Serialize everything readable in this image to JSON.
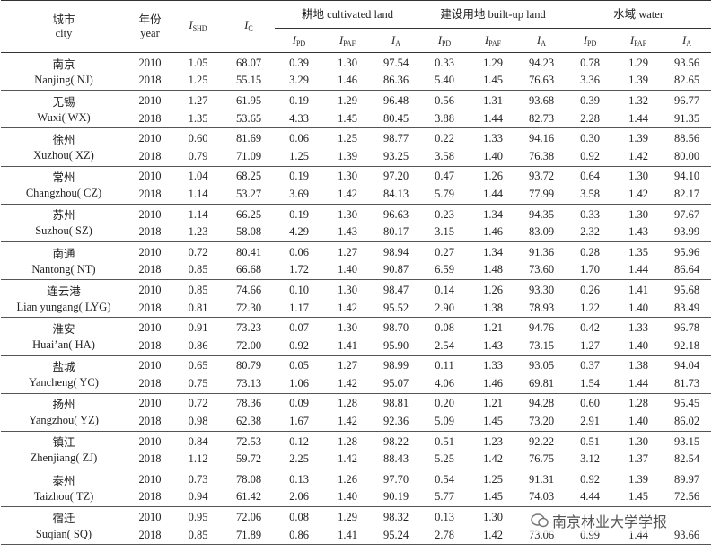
{
  "header": {
    "city": "城市",
    "city_en": "city",
    "year": "年份",
    "year_en": "year",
    "index_cols": [
      {
        "symbol": "I",
        "sub": "SHD"
      },
      {
        "symbol": "I",
        "sub": "C"
      }
    ],
    "groups": [
      {
        "title": "耕地 cultivated land",
        "cols": [
          {
            "symbol": "I",
            "sub": "PD"
          },
          {
            "symbol": "I",
            "sub": "PAF"
          },
          {
            "symbol": "I",
            "sub": "A"
          }
        ]
      },
      {
        "title": "建设用地 built-up land",
        "cols": [
          {
            "symbol": "I",
            "sub": "PD"
          },
          {
            "symbol": "I",
            "sub": "PAF"
          },
          {
            "symbol": "I",
            "sub": "A"
          }
        ]
      },
      {
        "title": "水域 water",
        "cols": [
          {
            "symbol": "I",
            "sub": "PD"
          },
          {
            "symbol": "I",
            "sub": "PAF"
          },
          {
            "symbol": "I",
            "sub": "A"
          }
        ]
      }
    ]
  },
  "rows": [
    {
      "city": "南京",
      "city_en": "Nanjing( NJ)",
      "years": [
        {
          "year": "2010",
          "values": [
            "1.05",
            "68.07",
            "0.39",
            "1.30",
            "97.54",
            "0.33",
            "1.29",
            "94.23",
            "0.78",
            "1.29",
            "93.56"
          ]
        },
        {
          "year": "2018",
          "values": [
            "1.25",
            "55.15",
            "3.29",
            "1.46",
            "86.36",
            "5.40",
            "1.45",
            "76.63",
            "3.36",
            "1.39",
            "82.65"
          ]
        }
      ]
    },
    {
      "city": "无锡",
      "city_en": "Wuxi( WX)",
      "years": [
        {
          "year": "2010",
          "values": [
            "1.27",
            "61.95",
            "0.19",
            "1.29",
            "96.48",
            "0.56",
            "1.31",
            "93.68",
            "0.39",
            "1.32",
            "96.77"
          ]
        },
        {
          "year": "2018",
          "values": [
            "1.35",
            "53.65",
            "4.33",
            "1.45",
            "80.45",
            "3.88",
            "1.44",
            "82.73",
            "2.28",
            "1.44",
            "91.35"
          ]
        }
      ]
    },
    {
      "city": "徐州",
      "city_en": "Xuzhou( XZ)",
      "years": [
        {
          "year": "2010",
          "values": [
            "0.60",
            "81.69",
            "0.06",
            "1.25",
            "98.77",
            "0.22",
            "1.33",
            "94.16",
            "0.30",
            "1.39",
            "88.56"
          ]
        },
        {
          "year": "2018",
          "values": [
            "0.79",
            "71.09",
            "1.25",
            "1.39",
            "93.25",
            "3.58",
            "1.40",
            "76.38",
            "0.92",
            "1.42",
            "80.00"
          ]
        }
      ]
    },
    {
      "city": "常州",
      "city_en": "Changzhou( CZ)",
      "years": [
        {
          "year": "2010",
          "values": [
            "1.04",
            "68.25",
            "0.19",
            "1.30",
            "97.20",
            "0.47",
            "1.26",
            "93.72",
            "0.64",
            "1.30",
            "94.10"
          ]
        },
        {
          "year": "2018",
          "values": [
            "1.14",
            "53.27",
            "3.69",
            "1.42",
            "84.13",
            "5.79",
            "1.44",
            "77.99",
            "3.58",
            "1.42",
            "82.17"
          ]
        }
      ]
    },
    {
      "city": "苏州",
      "city_en": "Suzhou( SZ)",
      "years": [
        {
          "year": "2010",
          "values": [
            "1.14",
            "66.25",
            "0.19",
            "1.30",
            "96.63",
            "0.23",
            "1.34",
            "94.35",
            "0.33",
            "1.30",
            "97.67"
          ]
        },
        {
          "year": "2018",
          "values": [
            "1.23",
            "58.08",
            "4.29",
            "1.43",
            "80.17",
            "3.15",
            "1.46",
            "83.09",
            "2.32",
            "1.43",
            "93.99"
          ]
        }
      ]
    },
    {
      "city": "南通",
      "city_en": "Nantong( NT)",
      "years": [
        {
          "year": "2010",
          "values": [
            "0.72",
            "80.41",
            "0.06",
            "1.27",
            "98.94",
            "0.27",
            "1.34",
            "91.36",
            "0.28",
            "1.35",
            "95.96"
          ]
        },
        {
          "year": "2018",
          "values": [
            "0.85",
            "66.68",
            "1.72",
            "1.40",
            "90.87",
            "6.59",
            "1.48",
            "73.60",
            "1.70",
            "1.44",
            "86.64"
          ]
        }
      ]
    },
    {
      "city": "连云港",
      "city_en": "Lian yungang( LYG)",
      "years": [
        {
          "year": "2010",
          "values": [
            "0.85",
            "74.66",
            "0.10",
            "1.30",
            "98.47",
            "0.14",
            "1.26",
            "93.30",
            "0.26",
            "1.41",
            "95.68"
          ]
        },
        {
          "year": "2018",
          "values": [
            "0.81",
            "72.30",
            "1.17",
            "1.42",
            "95.52",
            "2.90",
            "1.38",
            "78.93",
            "1.22",
            "1.40",
            "83.49"
          ]
        }
      ]
    },
    {
      "city": "淮安",
      "city_en": "Huai’an( HA)",
      "years": [
        {
          "year": "2010",
          "values": [
            "0.91",
            "73.23",
            "0.07",
            "1.30",
            "98.70",
            "0.08",
            "1.21",
            "94.76",
            "0.42",
            "1.33",
            "96.78"
          ]
        },
        {
          "year": "2018",
          "values": [
            "0.86",
            "72.00",
            "0.92",
            "1.41",
            "95.90",
            "2.54",
            "1.43",
            "73.15",
            "1.27",
            "1.40",
            "92.18"
          ]
        }
      ]
    },
    {
      "city": "盐城",
      "city_en": "Yancheng( YC)",
      "years": [
        {
          "year": "2010",
          "values": [
            "0.65",
            "80.79",
            "0.05",
            "1.27",
            "98.99",
            "0.11",
            "1.33",
            "93.05",
            "0.37",
            "1.38",
            "94.04"
          ]
        },
        {
          "year": "2018",
          "values": [
            "0.75",
            "73.13",
            "1.06",
            "1.42",
            "95.07",
            "4.06",
            "1.46",
            "69.81",
            "1.54",
            "1.44",
            "81.73"
          ]
        }
      ]
    },
    {
      "city": "扬州",
      "city_en": "Yangzhou( YZ)",
      "years": [
        {
          "year": "2010",
          "values": [
            "0.72",
            "78.36",
            "0.09",
            "1.28",
            "98.81",
            "0.20",
            "1.21",
            "94.28",
            "0.60",
            "1.28",
            "95.45"
          ]
        },
        {
          "year": "2018",
          "values": [
            "0.98",
            "62.38",
            "1.67",
            "1.42",
            "92.36",
            "5.09",
            "1.45",
            "73.20",
            "2.91",
            "1.40",
            "86.02"
          ]
        }
      ]
    },
    {
      "city": "镇江",
      "city_en": "Zhenjiang( ZJ)",
      "years": [
        {
          "year": "2010",
          "values": [
            "0.84",
            "72.53",
            "0.12",
            "1.28",
            "98.22",
            "0.51",
            "1.23",
            "92.22",
            "0.51",
            "1.30",
            "93.15"
          ]
        },
        {
          "year": "2018",
          "values": [
            "1.12",
            "59.72",
            "2.25",
            "1.42",
            "88.43",
            "5.25",
            "1.42",
            "76.75",
            "3.12",
            "1.37",
            "82.54"
          ]
        }
      ]
    },
    {
      "city": "泰州",
      "city_en": "Taizhou( TZ)",
      "years": [
        {
          "year": "2010",
          "values": [
            "0.73",
            "78.08",
            "0.13",
            "1.26",
            "97.70",
            "0.54",
            "1.25",
            "91.31",
            "0.92",
            "1.39",
            "89.97"
          ]
        },
        {
          "year": "2018",
          "values": [
            "0.94",
            "61.42",
            "2.06",
            "1.40",
            "90.19",
            "5.77",
            "1.45",
            "74.03",
            "4.44",
            "1.45",
            "72.56"
          ]
        }
      ]
    },
    {
      "city": "宿迁",
      "city_en": "Suqian( SQ)",
      "years": [
        {
          "year": "2010",
          "values": [
            "0.95",
            "72.06",
            "0.08",
            "1.29",
            "98.32",
            "0.13",
            "1.30",
            null,
            null,
            null,
            null
          ]
        },
        {
          "year": "2018",
          "values": [
            "0.85",
            "71.89",
            "0.86",
            "1.41",
            "95.24",
            "2.78",
            "1.42",
            "73.06",
            "0.99",
            "1.44",
            "93.66"
          ]
        }
      ]
    }
  ],
  "watermark": "南京林业大学学报"
}
